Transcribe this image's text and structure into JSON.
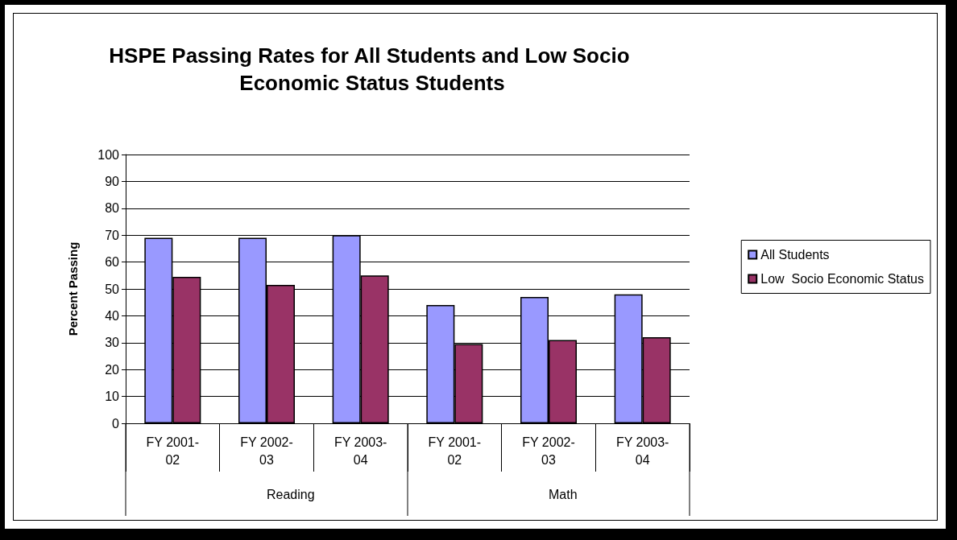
{
  "chart_data": {
    "type": "bar",
    "title": "HSPE Passing Rates for All Students and Low Socio Economic Status Students",
    "categories": [
      "FY 2001-02",
      "FY 2002-03",
      "FY 2003-04",
      "FY 2001-02",
      "FY 2002-03",
      "FY 2003-04"
    ],
    "annotations": [
      "Reading",
      "Math"
    ],
    "ylabel": "Percent Passing",
    "series": [
      {
        "name": "All Students",
        "color": "#9999ff",
        "values": [
          69,
          69,
          70,
          44,
          47,
          48
        ]
      },
      {
        "name": "Low  Socio Economic Status",
        "color": "#993366",
        "values": [
          54.5,
          51.5,
          55,
          29.5,
          31,
          32
        ]
      }
    ],
    "ylim": [
      0,
      100
    ],
    "yticks": [
      0,
      10,
      20,
      30,
      40,
      50,
      60,
      70,
      80,
      90,
      100
    ],
    "grid": "y",
    "legend": "right"
  }
}
